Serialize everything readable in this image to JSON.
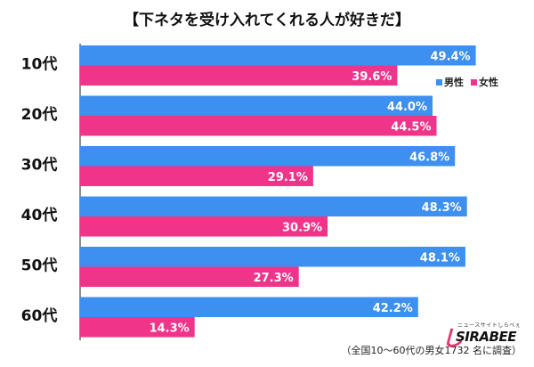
{
  "chart_data": {
    "type": "bar",
    "orientation": "horizontal",
    "title": "【下ネタを受け入れてくれる人が好きだ】",
    "categories": [
      "10代",
      "20代",
      "30代",
      "40代",
      "50代",
      "60代"
    ],
    "series": [
      {
        "name": "男性",
        "color": "#3d8ff0",
        "values": [
          49.4,
          44.0,
          46.8,
          48.3,
          48.1,
          42.2
        ]
      },
      {
        "name": "女性",
        "color": "#f0348a",
        "values": [
          39.6,
          44.5,
          29.1,
          30.9,
          27.3,
          14.3
        ]
      }
    ],
    "value_suffix": "%",
    "xlim": [
      0,
      55
    ],
    "legend": "top-right"
  },
  "brand": {
    "name": "SIRABEE",
    "tagline": "ニュースサイトしらべぇ",
    "mark": "し"
  },
  "footnote": "（全国10～60代の男女1732 名に調査）"
}
